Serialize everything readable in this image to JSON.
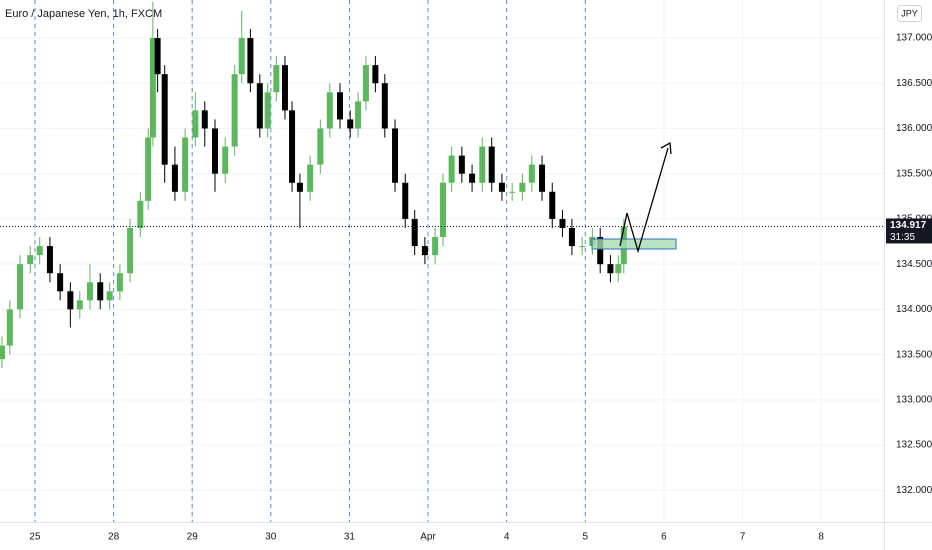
{
  "chart_data": {
    "type": "candlestick",
    "title": "Euro / Japanese Yen, 1h, FXCM",
    "currency": "JPY",
    "last_price": {
      "value": 134.917,
      "label": "134.917"
    },
    "countdown": "31:35",
    "up_color": "#5cb85c",
    "down_color": "#000000",
    "grid": true,
    "xlim": [
      -0.445,
      10.8
    ],
    "xticks": [
      {
        "value": 0,
        "label": "25"
      },
      {
        "value": 1,
        "label": "28"
      },
      {
        "value": 2,
        "label": "29"
      },
      {
        "value": 3,
        "label": "30"
      },
      {
        "value": 4,
        "label": "31"
      },
      {
        "value": 5,
        "label": "Apr"
      },
      {
        "value": 6,
        "label": "4"
      },
      {
        "value": 7,
        "label": "5"
      },
      {
        "value": 8,
        "label": "6"
      },
      {
        "value": 9,
        "label": "7"
      },
      {
        "value": 10,
        "label": "8"
      }
    ],
    "ylim": [
      131.65,
      137.42
    ],
    "yticks": [
      {
        "value": 132,
        "label": "132.000"
      },
      {
        "value": 132.5,
        "label": "132.500"
      },
      {
        "value": 133,
        "label": "133.000"
      },
      {
        "value": 133.5,
        "label": "133.500"
      },
      {
        "value": 134,
        "label": "134.000"
      },
      {
        "value": 134.5,
        "label": "134.500"
      },
      {
        "value": 135,
        "label": "135.000"
      },
      {
        "value": 135.5,
        "label": "135.500"
      },
      {
        "value": 136,
        "label": "136.000"
      },
      {
        "value": 136.5,
        "label": "136.500"
      },
      {
        "value": 137,
        "label": "137.000"
      }
    ],
    "x": [
      -0.42,
      -0.32,
      -0.19,
      -0.06,
      0.06,
      0.19,
      0.32,
      0.45,
      0.57,
      0.7,
      0.83,
      0.95,
      1.08,
      1.21,
      1.34,
      1.44,
      1.5,
      1.56,
      1.65,
      1.78,
      1.91,
      2.04,
      2.16,
      2.29,
      2.42,
      2.54,
      2.63,
      2.74,
      2.86,
      2.96,
      3.07,
      3.18,
      3.27,
      3.37,
      3.5,
      3.63,
      3.75,
      3.88,
      4.01,
      4.11,
      4.21,
      4.33,
      4.45,
      4.58,
      4.71,
      4.83,
      4.96,
      5.09,
      5.19,
      5.3,
      5.43,
      5.56,
      5.69,
      5.81,
      5.94,
      6.07,
      6.2,
      6.32,
      6.45,
      6.58,
      6.71,
      6.83,
      6.96,
      7.09,
      7.19,
      7.32,
      7.42,
      7.49
    ],
    "open": [
      133.45,
      133.6,
      134.0,
      134.5,
      134.6,
      134.7,
      134.4,
      134.2,
      134.0,
      134.1,
      134.3,
      134.1,
      134.2,
      134.4,
      134.9,
      135.2,
      135.9,
      137.0,
      136.6,
      135.6,
      135.3,
      135.9,
      136.2,
      136.0,
      135.5,
      135.8,
      136.6,
      137.0,
      136.5,
      136.0,
      136.4,
      136.7,
      136.2,
      135.4,
      135.3,
      135.6,
      136.0,
      136.4,
      136.1,
      136.0,
      136.3,
      136.7,
      136.5,
      136.0,
      135.4,
      135.0,
      134.7,
      134.6,
      134.8,
      135.4,
      135.7,
      135.5,
      135.4,
      135.8,
      135.4,
      135.3,
      135.3,
      135.4,
      135.6,
      135.3,
      135.0,
      134.9,
      134.7,
      134.7,
      134.8,
      134.5,
      134.4,
      134.5
    ],
    "high": [
      133.7,
      134.1,
      134.6,
      134.7,
      134.8,
      134.8,
      134.5,
      134.3,
      134.2,
      134.5,
      134.4,
      134.3,
      134.5,
      135.0,
      135.3,
      136.0,
      137.4,
      137.1,
      136.7,
      135.8,
      136.0,
      136.4,
      136.3,
      136.1,
      135.9,
      136.7,
      137.3,
      137.1,
      136.6,
      136.5,
      136.8,
      136.8,
      136.3,
      135.5,
      135.7,
      136.1,
      136.5,
      136.5,
      136.2,
      136.4,
      136.8,
      136.8,
      136.6,
      136.1,
      135.5,
      135.1,
      134.8,
      134.9,
      135.5,
      135.8,
      135.8,
      135.6,
      135.9,
      135.9,
      135.5,
      135.4,
      135.5,
      135.7,
      135.7,
      135.4,
      135.1,
      135.0,
      134.8,
      134.9,
      134.9,
      134.6,
      134.6,
      135.0
    ],
    "low": [
      133.35,
      133.5,
      133.9,
      134.4,
      134.5,
      134.3,
      134.1,
      133.8,
      133.9,
      134.0,
      134.0,
      134.0,
      134.1,
      134.3,
      134.8,
      135.1,
      135.8,
      136.4,
      135.4,
      135.2,
      135.2,
      135.8,
      135.8,
      135.3,
      135.4,
      135.7,
      136.5,
      136.4,
      135.9,
      135.9,
      136.3,
      136.1,
      135.3,
      134.9,
      135.2,
      135.5,
      135.9,
      136.0,
      135.9,
      135.9,
      136.2,
      136.4,
      135.9,
      135.3,
      134.9,
      134.6,
      134.5,
      134.5,
      134.7,
      135.3,
      135.4,
      135.3,
      135.3,
      135.3,
      135.2,
      135.2,
      135.2,
      135.3,
      135.2,
      134.9,
      134.8,
      134.6,
      134.6,
      134.6,
      134.4,
      134.3,
      134.3,
      134.4
    ],
    "close": [
      133.6,
      134.0,
      134.5,
      134.6,
      134.7,
      134.4,
      134.2,
      134.0,
      134.1,
      134.3,
      134.1,
      134.2,
      134.4,
      134.9,
      135.2,
      135.9,
      137.0,
      136.6,
      135.6,
      135.3,
      135.9,
      136.2,
      136.0,
      135.5,
      135.8,
      136.6,
      137.0,
      136.5,
      136.0,
      136.4,
      136.7,
      136.2,
      135.4,
      135.3,
      135.6,
      136.0,
      136.4,
      136.1,
      136.0,
      136.3,
      136.7,
      136.5,
      136.0,
      135.4,
      135.0,
      134.7,
      134.6,
      134.8,
      135.4,
      135.7,
      135.5,
      135.4,
      135.8,
      135.4,
      135.3,
      135.3,
      135.4,
      135.6,
      135.3,
      135.0,
      134.9,
      134.7,
      134.7,
      134.8,
      134.5,
      134.4,
      134.5,
      134.917
    ]
  }
}
